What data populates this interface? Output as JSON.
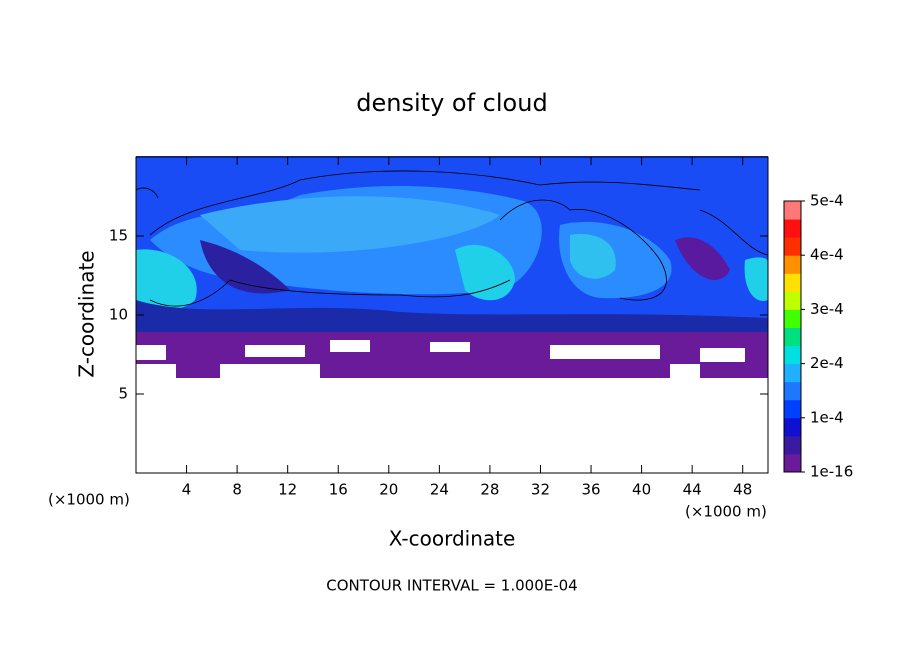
{
  "chart_data": {
    "type": "contour",
    "title": "density of cloud",
    "x_label": "X-coordinate",
    "y_label": "Z-coordinate",
    "x_unit_left": "(×1000 m)",
    "x_unit_right": "(×1000 m)",
    "footnote": "CONTOUR INTERVAL = 1.000E-04",
    "xlim": [
      0,
      50
    ],
    "xticks": [
      4,
      8,
      12,
      16,
      20,
      24,
      28,
      32,
      36,
      40,
      44,
      48
    ],
    "ylim": [
      0,
      20
    ],
    "yticks": [
      5,
      10,
      15
    ],
    "clim": [
      1e-16,
      0.0005
    ],
    "colorbar_ticks": [
      {
        "value": 0.0005,
        "label": "5e-4"
      },
      {
        "value": 0.0004,
        "label": "4e-4"
      },
      {
        "value": 0.0003,
        "label": "3e-4"
      },
      {
        "value": 0.0002,
        "label": "2e-4"
      },
      {
        "value": 0.0001,
        "label": "1e-4"
      },
      1e-16
    ],
    "colormap": [
      "#6a1b9a",
      "#3a1aa0",
      "#1010d0",
      "#0040ff",
      "#1e78ff",
      "#20b0ff",
      "#00e0e0",
      "#00e080",
      "#40ff00",
      "#c0ff00",
      "#ffe000",
      "#ff9000",
      "#ff3000",
      "#ff1010",
      "#ff7878"
    ]
  }
}
